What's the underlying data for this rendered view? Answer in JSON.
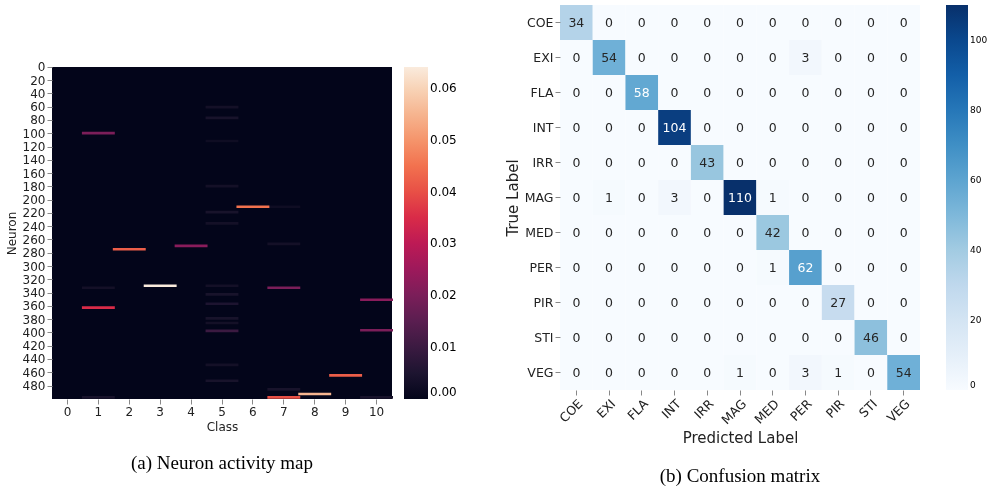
{
  "chart_data": [
    {
      "type": "heatmap",
      "title": "(a) Neuron activity map",
      "xlabel": "Class",
      "ylabel": "Neuron",
      "categories": [
        "0",
        "1",
        "2",
        "3",
        "4",
        "5",
        "6",
        "7",
        "8",
        "9",
        "10"
      ],
      "y_categories": [
        "0",
        null,
        null,
        null,
        null,
        null,
        null,
        null,
        null,
        null,
        null,
        null,
        null,
        null,
        null,
        null,
        null,
        null,
        null,
        null,
        "20",
        null,
        null,
        null,
        null,
        null,
        null,
        null,
        null,
        null,
        null,
        null,
        null,
        null,
        null,
        null,
        null,
        null,
        null,
        null,
        "40",
        null,
        null,
        null,
        null,
        null,
        null,
        null,
        null,
        null,
        null,
        null,
        null,
        null,
        null,
        null,
        null,
        null,
        null,
        null,
        "60",
        null,
        null,
        null,
        null,
        null,
        null,
        null,
        null,
        null,
        null,
        null,
        null,
        null,
        null,
        null,
        null,
        null,
        null,
        null,
        "80",
        null,
        null,
        null,
        null,
        null,
        null,
        null,
        null,
        null,
        null,
        null,
        null,
        null,
        null,
        null,
        null,
        null,
        null,
        null,
        "100",
        null,
        null,
        null,
        null,
        null,
        null,
        null,
        null,
        null,
        null,
        null,
        null,
        null,
        null,
        null,
        null,
        null,
        null,
        null,
        "120",
        null,
        null,
        null,
        null,
        null,
        null,
        null,
        null,
        null,
        null,
        null,
        null,
        null,
        null,
        null,
        null,
        null,
        null,
        null,
        "140",
        null,
        null,
        null,
        null,
        null,
        null,
        null,
        null,
        null,
        null,
        null,
        null,
        null,
        null,
        null,
        null,
        null,
        null,
        null,
        "160",
        null,
        null,
        null,
        null,
        null,
        null,
        null,
        null,
        null,
        null,
        null,
        null,
        null,
        null,
        null,
        null,
        null,
        null,
        null,
        "180",
        null,
        null,
        null,
        null,
        null,
        null,
        null,
        null,
        null,
        null,
        null,
        null,
        null,
        null,
        null,
        null,
        null,
        null,
        null,
        "200",
        null,
        null,
        null,
        null,
        null,
        null,
        null,
        null,
        null,
        null,
        null,
        null,
        null,
        null,
        null,
        null,
        null,
        null,
        null,
        "220",
        null,
        null,
        null,
        null,
        null,
        null,
        null,
        null,
        null,
        null,
        null,
        null,
        null,
        null,
        null,
        null,
        null,
        null,
        null,
        "240",
        null,
        null,
        null,
        null,
        null,
        null,
        null,
        null,
        null,
        null,
        null,
        null,
        null,
        null,
        null,
        null,
        null,
        null,
        null,
        "260",
        null,
        null,
        null,
        null,
        null,
        null,
        null,
        null,
        null,
        null,
        null,
        null,
        null,
        null,
        null,
        null,
        null,
        null,
        null,
        "280",
        null,
        null,
        null,
        null,
        null,
        null,
        null,
        null,
        null,
        null,
        null,
        null,
        null,
        null,
        null,
        null,
        null,
        null,
        null,
        "300",
        null,
        null,
        null,
        null,
        null,
        null,
        null,
        null,
        null,
        null,
        null,
        null,
        null,
        null,
        null,
        null,
        null,
        null,
        null,
        "320",
        null,
        null,
        null,
        null,
        null,
        null,
        null,
        null,
        null,
        null,
        null,
        null,
        null,
        null,
        null,
        null,
        null,
        null,
        null,
        "340",
        null,
        null,
        null,
        null,
        null,
        null,
        null,
        null,
        null,
        null,
        null,
        null,
        null,
        null,
        null,
        null,
        null,
        null,
        null,
        "360",
        null,
        null,
        null,
        null,
        null,
        null,
        null,
        null,
        null,
        null,
        null,
        null,
        null,
        null,
        null,
        null,
        null,
        null,
        null,
        "380",
        null,
        null,
        null,
        null,
        null,
        null,
        null,
        null,
        null,
        null,
        null,
        null,
        null,
        null,
        null,
        null,
        null,
        null,
        null,
        "400",
        null,
        null,
        null,
        null,
        null,
        null,
        null,
        null,
        null,
        null,
        null,
        null,
        null,
        null,
        null,
        null,
        null,
        null,
        null,
        "420",
        null,
        null,
        null,
        null,
        null,
        null,
        null,
        null,
        null,
        null,
        null,
        null,
        null,
        null,
        null,
        null,
        null,
        null,
        null,
        "440",
        null,
        null,
        null,
        null,
        null,
        null,
        null,
        null,
        null,
        null,
        null,
        null,
        null,
        null,
        null,
        null,
        null,
        null,
        null,
        "460",
        null,
        null,
        null,
        null,
        null,
        null,
        null,
        null,
        null,
        null,
        null,
        null,
        null,
        null,
        null,
        null,
        null,
        null,
        null,
        "480",
        null,
        null,
        null,
        null,
        null,
        null,
        null,
        null,
        null,
        null,
        null,
        null,
        null,
        null,
        null,
        null,
        null,
        null,
        null
      ],
      "cells": [
        null,
        null,
        null,
        null,
        null,
        null,
        null,
        null,
        null,
        null,
        null,
        null,
        null,
        null,
        null,
        null,
        null,
        null,
        null,
        null,
        null,
        null,
        null,
        null,
        null,
        null,
        null,
        null,
        null,
        null,
        null,
        null,
        null,
        null,
        null,
        null,
        null,
        null,
        null,
        null,
        null,
        null,
        null,
        null,
        null,
        null,
        null,
        null,
        null,
        null,
        null,
        null,
        null,
        null,
        null,
        null,
        null,
        null,
        null,
        null,
        [
          null,
          null,
          null,
          null,
          null,
          0.003,
          null,
          null,
          null,
          null,
          null
        ],
        null,
        null,
        null,
        null,
        null,
        null,
        null,
        null,
        null,
        null,
        null,
        null,
        null,
        null,
        null,
        [
          null,
          null,
          null,
          null,
          null,
          0.004,
          null,
          null,
          null,
          null,
          null
        ],
        null,
        null,
        null,
        null,
        null,
        null,
        null,
        null,
        null,
        null,
        null,
        null,
        null,
        null,
        null,
        null,
        null,
        null,
        null,
        null,
        null,
        null,
        [
          null,
          0.02,
          null,
          null,
          null,
          null,
          null,
          null,
          null,
          null,
          null
        ],
        null,
        null,
        null,
        null,
        null,
        null,
        null,
        null,
        null,
        null,
        null,
        [
          null,
          null,
          null,
          null,
          null,
          0.002,
          null,
          null,
          null,
          null,
          null
        ],
        null,
        null,
        null,
        null,
        null,
        null,
        null,
        null,
        null,
        null,
        null,
        null,
        null,
        null,
        null,
        null,
        null,
        null,
        null,
        null,
        null,
        null,
        null,
        null,
        null,
        null,
        null,
        null,
        null,
        null,
        null,
        null,
        null,
        null,
        null,
        null,
        null,
        null,
        null,
        null,
        null,
        null,
        null,
        null,
        null,
        null,
        null,
        null,
        null,
        null,
        null,
        null,
        null,
        null,
        null,
        null,
        null,
        null,
        null,
        null,
        null,
        null,
        null,
        null,
        null,
        null,
        null,
        [
          null,
          null,
          null,
          null,
          null,
          0.003,
          null,
          null,
          null,
          null,
          null
        ],
        null,
        null,
        null,
        null,
        null,
        null,
        null,
        null,
        null,
        null,
        null,
        null,
        null,
        null,
        null,
        null,
        null,
        null,
        null,
        null,
        null,
        null,
        null,
        null,
        null,
        null,
        null,
        null,
        null,
        null,
        [
          null,
          null,
          null,
          null,
          null,
          null,
          0.045,
          0.002,
          null,
          null,
          null
        ],
        null,
        null,
        null,
        null,
        null,
        null,
        null,
        [
          null,
          null,
          null,
          null,
          null,
          0.004,
          null,
          null,
          null,
          null,
          null
        ],
        null,
        null,
        null,
        null,
        null,
        null,
        null,
        null,
        null,
        null,
        null,
        null,
        null,
        null,
        null,
        null,
        [
          null,
          null,
          null,
          null,
          null,
          0.003,
          null,
          null,
          null,
          null,
          null
        ],
        null,
        null,
        null,
        null,
        null,
        null,
        null,
        null,
        null,
        null,
        null,
        null,
        null,
        null,
        null,
        null,
        null,
        null,
        null,
        null,
        null,
        null,
        null,
        null,
        null,
        null,
        null,
        null,
        null,
        null,
        [
          null,
          null,
          null,
          null,
          null,
          null,
          null,
          0.003,
          null,
          null,
          null
        ],
        null,
        null,
        [
          null,
          null,
          null,
          null,
          0.022,
          null,
          null,
          null,
          null,
          null,
          null
        ],
        null,
        null,
        null,
        null,
        [
          null,
          null,
          0.042,
          null,
          null,
          null,
          null,
          null,
          null,
          null,
          null
        ],
        null,
        null,
        null,
        null,
        null,
        null,
        null,
        null,
        null,
        null,
        null,
        null,
        null,
        null,
        null,
        null,
        null,
        null,
        null,
        null,
        null,
        null,
        null,
        null,
        null,
        null,
        null,
        null,
        null,
        null,
        null,
        null,
        null,
        null,
        null,
        null,
        null,
        null,
        null,
        null,
        null,
        null,
        null,
        null,
        null,
        null,
        null,
        null,
        null,
        null,
        null,
        null,
        null,
        null,
        [
          null,
          null,
          null,
          0.064,
          null,
          0.003,
          null,
          null,
          null,
          null,
          null
        ],
        null,
        null,
        [
          null,
          0.003,
          null,
          null,
          null,
          null,
          null,
          0.02,
          null,
          null,
          null
        ],
        null,
        null,
        null,
        null,
        null,
        null,
        null,
        null,
        null,
        [
          null,
          null,
          null,
          null,
          null,
          0.004,
          null,
          null,
          null,
          null,
          null
        ],
        null,
        null,
        null,
        null,
        null,
        null,
        null,
        [
          null,
          null,
          null,
          null,
          null,
          null,
          null,
          null,
          null,
          null,
          0.022
        ],
        null,
        null,
        null,
        null,
        null,
        [
          null,
          null,
          null,
          null,
          null,
          0.005,
          null,
          null,
          null,
          null,
          null
        ],
        null,
        null,
        null,
        null,
        null,
        [
          null,
          0.035,
          null,
          null,
          null,
          null,
          null,
          null,
          null,
          null,
          null
        ],
        null,
        null,
        null,
        null,
        null,
        null,
        null,
        null,
        null,
        null,
        null,
        null,
        null,
        null,
        null,
        [
          null,
          null,
          null,
          null,
          null,
          0.004,
          null,
          null,
          null,
          null,
          null
        ],
        null,
        null,
        null,
        null,
        null,
        null,
        [
          null,
          null,
          null,
          null,
          null,
          0.003,
          null,
          null,
          null,
          null,
          null
        ],
        null,
        null,
        null,
        null,
        null,
        null,
        null,
        null,
        null,
        null,
        [
          null,
          null,
          null,
          null,
          null,
          null,
          null,
          null,
          null,
          null,
          0.02
        ],
        [
          null,
          null,
          null,
          null,
          null,
          0.01,
          null,
          null,
          null,
          null,
          null
        ],
        null,
        null,
        null,
        null,
        null,
        null,
        null,
        null,
        null,
        null,
        null,
        null,
        null,
        null,
        null,
        null,
        null,
        null,
        null,
        null,
        null,
        null,
        null,
        null,
        null,
        null,
        null,
        null,
        null,
        null,
        null,
        null,
        null,
        null,
        null,
        null,
        null,
        null,
        null,
        null,
        null,
        null,
        null,
        null,
        null,
        null,
        null,
        null,
        null,
        null,
        [
          null,
          null,
          null,
          null,
          null,
          0.003,
          null,
          null,
          null,
          null,
          null
        ],
        null,
        null,
        null,
        null,
        null,
        null,
        null,
        null,
        null,
        null,
        null,
        null,
        null,
        null,
        null,
        [
          null,
          null,
          null,
          null,
          null,
          null,
          null,
          null,
          null,
          0.042,
          null
        ],
        null,
        null,
        null,
        null,
        null,
        null,
        null,
        [
          null,
          null,
          null,
          null,
          null,
          0.004,
          null,
          null,
          null,
          null,
          null
        ],
        null,
        null,
        null,
        null,
        null,
        null,
        null,
        null,
        null,
        null,
        null,
        null,
        [
          null,
          null,
          null,
          null,
          null,
          null,
          null,
          0.004,
          null,
          null,
          null
        ],
        null,
        null,
        null,
        null,
        null,
        null,
        [
          null,
          null,
          null,
          null,
          null,
          null,
          null,
          null,
          0.055,
          null,
          null
        ],
        null,
        null,
        null,
        null,
        [
          null,
          0.004,
          null,
          null,
          null,
          null,
          null,
          0.04,
          null,
          null,
          0.004
        ],
        null,
        null
      ],
      "clim": [
        0,
        0.064
      ],
      "cticks": [
        {
          "value": 0,
          "label": "0.00"
        },
        {
          "value": 0.01,
          "label": "0.01"
        },
        {
          "value": 0.02,
          "label": "0.02"
        },
        {
          "value": 0.03,
          "label": "0.03"
        },
        {
          "value": 0.04,
          "label": "0.04"
        },
        {
          "value": 0.05,
          "label": "0.05"
        },
        {
          "value": 0.06,
          "label": "0.06"
        }
      ]
    },
    {
      "type": "heatmap",
      "title": "(b) Confusion matrix",
      "xlabel": "Predicted Label",
      "ylabel": "True Label",
      "categories": [
        "COE",
        "EXI",
        "FLA",
        "INT",
        "IRR",
        "MAG",
        "MED",
        "PER",
        "PIR",
        "STI",
        "VEG"
      ],
      "y_categories": [
        "COE",
        "EXI",
        "FLA",
        "INT",
        "IRR",
        "MAG",
        "MED",
        "PER",
        "PIR",
        "STI",
        "VEG"
      ],
      "cells": [
        [
          34,
          0,
          0,
          0,
          0,
          0,
          0,
          0,
          0,
          0,
          0
        ],
        [
          0,
          54,
          0,
          0,
          0,
          0,
          0,
          3,
          0,
          0,
          0
        ],
        [
          0,
          0,
          58,
          0,
          0,
          0,
          0,
          0,
          0,
          0,
          0
        ],
        [
          0,
          0,
          0,
          104,
          0,
          0,
          0,
          0,
          0,
          0,
          0
        ],
        [
          0,
          0,
          0,
          0,
          43,
          0,
          0,
          0,
          0,
          0,
          0
        ],
        [
          0,
          1,
          0,
          3,
          0,
          110,
          1,
          0,
          0,
          0,
          0
        ],
        [
          0,
          0,
          0,
          0,
          0,
          0,
          42,
          0,
          0,
          0,
          0
        ],
        [
          0,
          0,
          0,
          0,
          0,
          0,
          1,
          62,
          0,
          0,
          0
        ],
        [
          0,
          0,
          0,
          0,
          0,
          0,
          0,
          0,
          27,
          0,
          0
        ],
        [
          0,
          0,
          0,
          0,
          0,
          0,
          0,
          0,
          0,
          46,
          0
        ],
        [
          0,
          0,
          0,
          0,
          0,
          1,
          0,
          3,
          1,
          0,
          54
        ]
      ],
      "data_labels": true,
      "clim": [
        0,
        110
      ],
      "cticks": [
        0,
        20,
        40,
        60,
        80,
        100
      ]
    }
  ]
}
